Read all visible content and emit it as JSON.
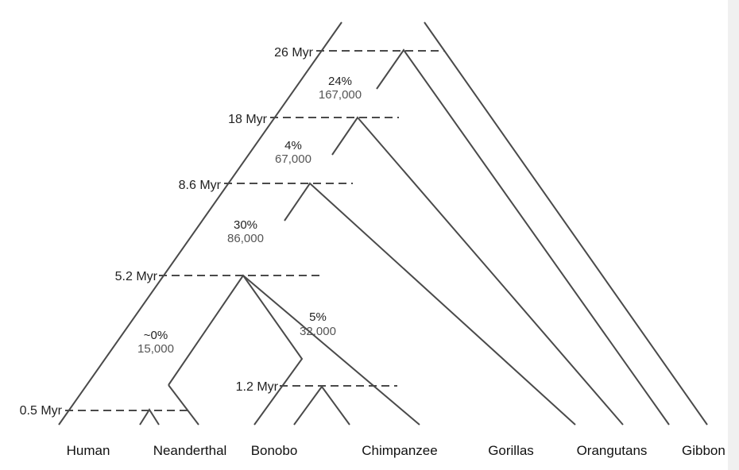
{
  "diagram": {
    "time_labels": [
      {
        "id": "t26",
        "text": "26 Myr"
      },
      {
        "id": "t18",
        "text": "18 Myr"
      },
      {
        "id": "t86",
        "text": "8.6 Myr"
      },
      {
        "id": "t52",
        "text": "5.2 Myr"
      },
      {
        "id": "t12",
        "text": "1.2 Myr"
      },
      {
        "id": "t05",
        "text": "0.5 Myr"
      }
    ],
    "annotations": [
      {
        "id": "a1",
        "percent": "24%",
        "count": "167,000"
      },
      {
        "id": "a2",
        "percent": "4%",
        "count": "67,000"
      },
      {
        "id": "a3",
        "percent": "30%",
        "count": "86,000"
      },
      {
        "id": "a4",
        "percent": "~0%",
        "count": "15,000"
      },
      {
        "id": "a5",
        "percent": "5%",
        "count": "32,000"
      }
    ],
    "species": [
      "Human",
      "Neanderthal",
      "Bonobo",
      "Chimpanzee",
      "Gorillas",
      "Orangutans",
      "Gibbon"
    ]
  }
}
